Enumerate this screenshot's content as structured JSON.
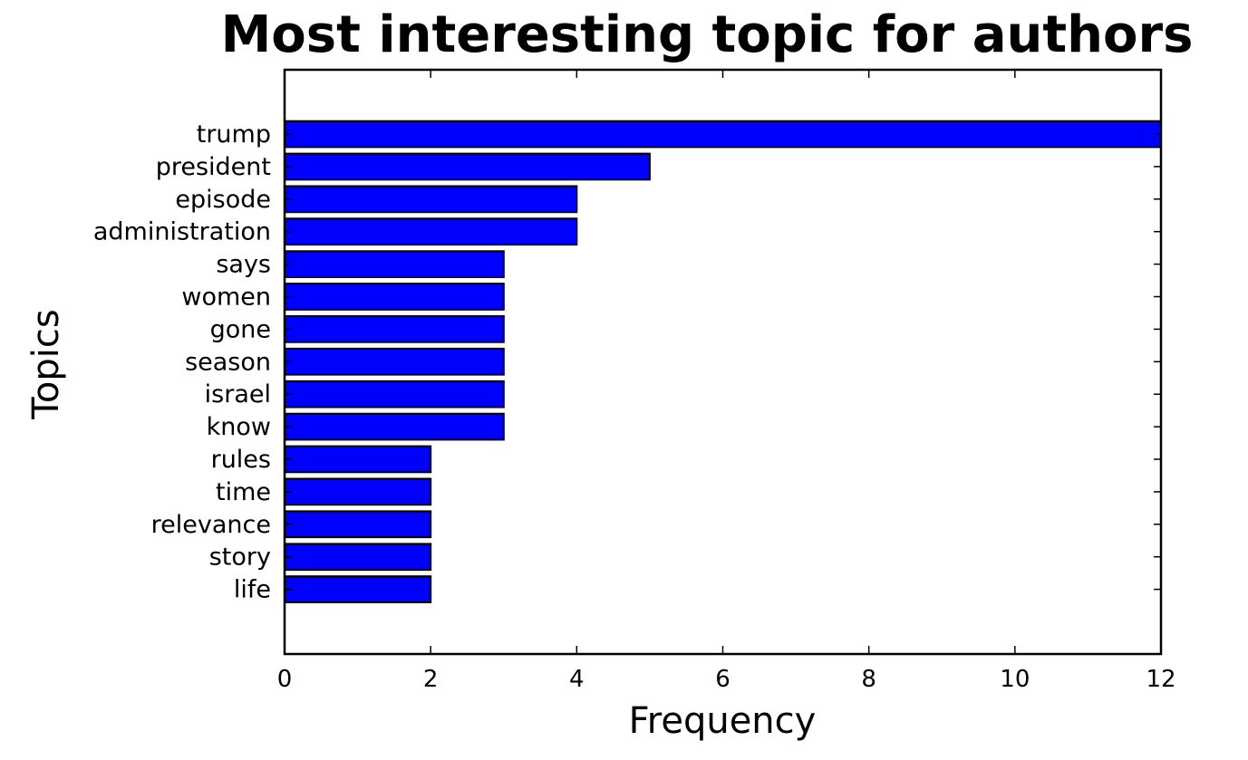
{
  "chart_data": {
    "type": "bar",
    "orientation": "horizontal",
    "title": "Most interesting topic for authors",
    "xlabel": "Frequency",
    "ylabel": "Topics",
    "xlim": [
      0,
      12
    ],
    "xticks": [
      "0",
      "2",
      "4",
      "6",
      "8",
      "10",
      "12"
    ],
    "categories": [
      "trump",
      "president",
      "episode",
      "administration",
      "says",
      "women",
      "gone",
      "season",
      "israel",
      "know",
      "rules",
      "time",
      "relevance",
      "story",
      "life"
    ],
    "values": [
      12,
      5,
      4,
      4,
      3,
      3,
      3,
      3,
      3,
      3,
      2,
      2,
      2,
      2,
      2
    ],
    "bar_color": "#0000ff",
    "bar_edge_color": "#000000",
    "grid": false,
    "legend": "none"
  }
}
